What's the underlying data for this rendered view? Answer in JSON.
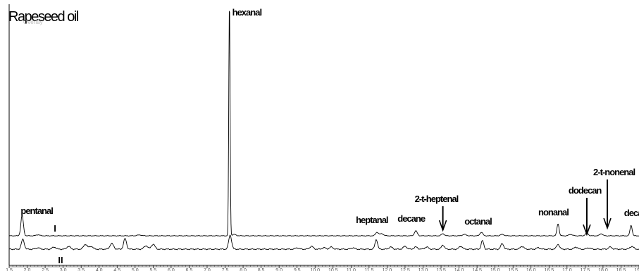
{
  "chart_data": {
    "type": "line",
    "title": "Rapeseed oil",
    "subtitle": "Overlay",
    "xlabel": "",
    "ylabel": "",
    "xlim": [
      1.5,
      19.0
    ],
    "x_ticks": [
      1.5,
      2.0,
      2.5,
      3.0,
      3.5,
      4.0,
      4.5,
      5.0,
      5.5,
      6.0,
      6.5,
      7.0,
      7.5,
      8.0,
      8.5,
      9.0,
      9.5,
      10.0,
      10.5,
      11.0,
      11.5,
      12.0,
      12.5,
      13.0,
      13.5,
      14.0,
      14.5,
      15.0,
      15.5,
      16.0,
      16.5,
      17.0,
      17.5,
      18.0,
      18.5,
      19.0
    ],
    "grid": false,
    "legend": "none",
    "series": [
      {
        "name": "I",
        "baseline": 3,
        "noise": 0.5,
        "peaks": [
          {
            "x": 1.86,
            "height": 29,
            "width": 0.035
          },
          {
            "x": 2.3,
            "height": 1.5,
            "width": 0.05
          },
          {
            "x": 5.12,
            "height": 1.2,
            "width": 0.06
          },
          {
            "x": 7.62,
            "height": 330,
            "width": 0.018
          },
          {
            "x": 7.75,
            "height": 2,
            "width": 0.05
          },
          {
            "x": 11.72,
            "height": 5,
            "width": 0.04
          },
          {
            "x": 11.85,
            "height": 3,
            "width": 0.05
          },
          {
            "x": 12.8,
            "height": 7,
            "width": 0.04
          },
          {
            "x": 13.55,
            "height": 3,
            "width": 0.04
          },
          {
            "x": 14.15,
            "height": 2,
            "width": 0.05
          },
          {
            "x": 14.62,
            "height": 5,
            "width": 0.04
          },
          {
            "x": 15.2,
            "height": 2,
            "width": 0.05
          },
          {
            "x": 16.75,
            "height": 17,
            "width": 0.03
          },
          {
            "x": 17.1,
            "height": 2,
            "width": 0.05
          },
          {
            "x": 17.55,
            "height": 4,
            "width": 0.04
          },
          {
            "x": 17.95,
            "height": 3,
            "width": 0.04
          },
          {
            "x": 18.78,
            "height": 15,
            "width": 0.03
          }
        ]
      },
      {
        "name": "II",
        "baseline": 0,
        "noise": 1.0,
        "peaks": [
          {
            "x": 1.88,
            "height": 14,
            "width": 0.04
          },
          {
            "x": 2.3,
            "height": 2,
            "width": 0.05
          },
          {
            "x": 2.75,
            "height": 3,
            "width": 0.05
          },
          {
            "x": 3.15,
            "height": 4,
            "width": 0.05
          },
          {
            "x": 3.62,
            "height": 7,
            "width": 0.05
          },
          {
            "x": 3.78,
            "height": 4,
            "width": 0.05
          },
          {
            "x": 4.35,
            "height": 8,
            "width": 0.05
          },
          {
            "x": 4.72,
            "height": 15,
            "width": 0.04
          },
          {
            "x": 5.3,
            "height": 5,
            "width": 0.05
          },
          {
            "x": 5.5,
            "height": 7,
            "width": 0.05
          },
          {
            "x": 7.64,
            "height": 20,
            "width": 0.04
          },
          {
            "x": 9.5,
            "height": 2,
            "width": 0.05
          },
          {
            "x": 9.9,
            "height": 4,
            "width": 0.05
          },
          {
            "x": 10.25,
            "height": 2,
            "width": 0.05
          },
          {
            "x": 10.45,
            "height": 3,
            "width": 0.05
          },
          {
            "x": 11.05,
            "height": 2,
            "width": 0.05
          },
          {
            "x": 11.7,
            "height": 14,
            "width": 0.035
          },
          {
            "x": 12.1,
            "height": 3,
            "width": 0.05
          },
          {
            "x": 12.5,
            "height": 4,
            "width": 0.05
          },
          {
            "x": 12.8,
            "height": 3,
            "width": 0.05
          },
          {
            "x": 13.1,
            "height": 3,
            "width": 0.05
          },
          {
            "x": 13.55,
            "height": 6,
            "width": 0.04
          },
          {
            "x": 14.05,
            "height": 4,
            "width": 0.05
          },
          {
            "x": 14.65,
            "height": 12,
            "width": 0.035
          },
          {
            "x": 15.2,
            "height": 8,
            "width": 0.04
          },
          {
            "x": 15.75,
            "height": 4,
            "width": 0.05
          },
          {
            "x": 16.2,
            "height": 2,
            "width": 0.05
          },
          {
            "x": 16.75,
            "height": 7,
            "width": 0.04
          },
          {
            "x": 17.25,
            "height": 3,
            "width": 0.05
          },
          {
            "x": 17.6,
            "height": 2,
            "width": 0.05
          },
          {
            "x": 18.2,
            "height": 3,
            "width": 0.05
          },
          {
            "x": 18.8,
            "height": 4,
            "width": 0.05
          }
        ]
      }
    ],
    "annotations": [
      {
        "text": "hexanal",
        "x": 7.62
      },
      {
        "text": "pentanal",
        "x": 1.86
      },
      {
        "text": "heptanal",
        "x": 11.72
      },
      {
        "text": "decane",
        "x": 12.8
      },
      {
        "text": "2-t-heptenal",
        "x": 13.55,
        "arrow": true
      },
      {
        "text": "octanal",
        "x": 14.62
      },
      {
        "text": "nonanal",
        "x": 16.75
      },
      {
        "text": "dodecan",
        "x": 17.55,
        "arrow": true
      },
      {
        "text": "2-t-nonenal",
        "x": 18.12,
        "arrow": true
      },
      {
        "text": "decanal",
        "x": 18.78
      }
    ],
    "trace_labels": [
      {
        "text": "I",
        "series": "I"
      },
      {
        "text": "II",
        "series": "II"
      }
    ]
  }
}
